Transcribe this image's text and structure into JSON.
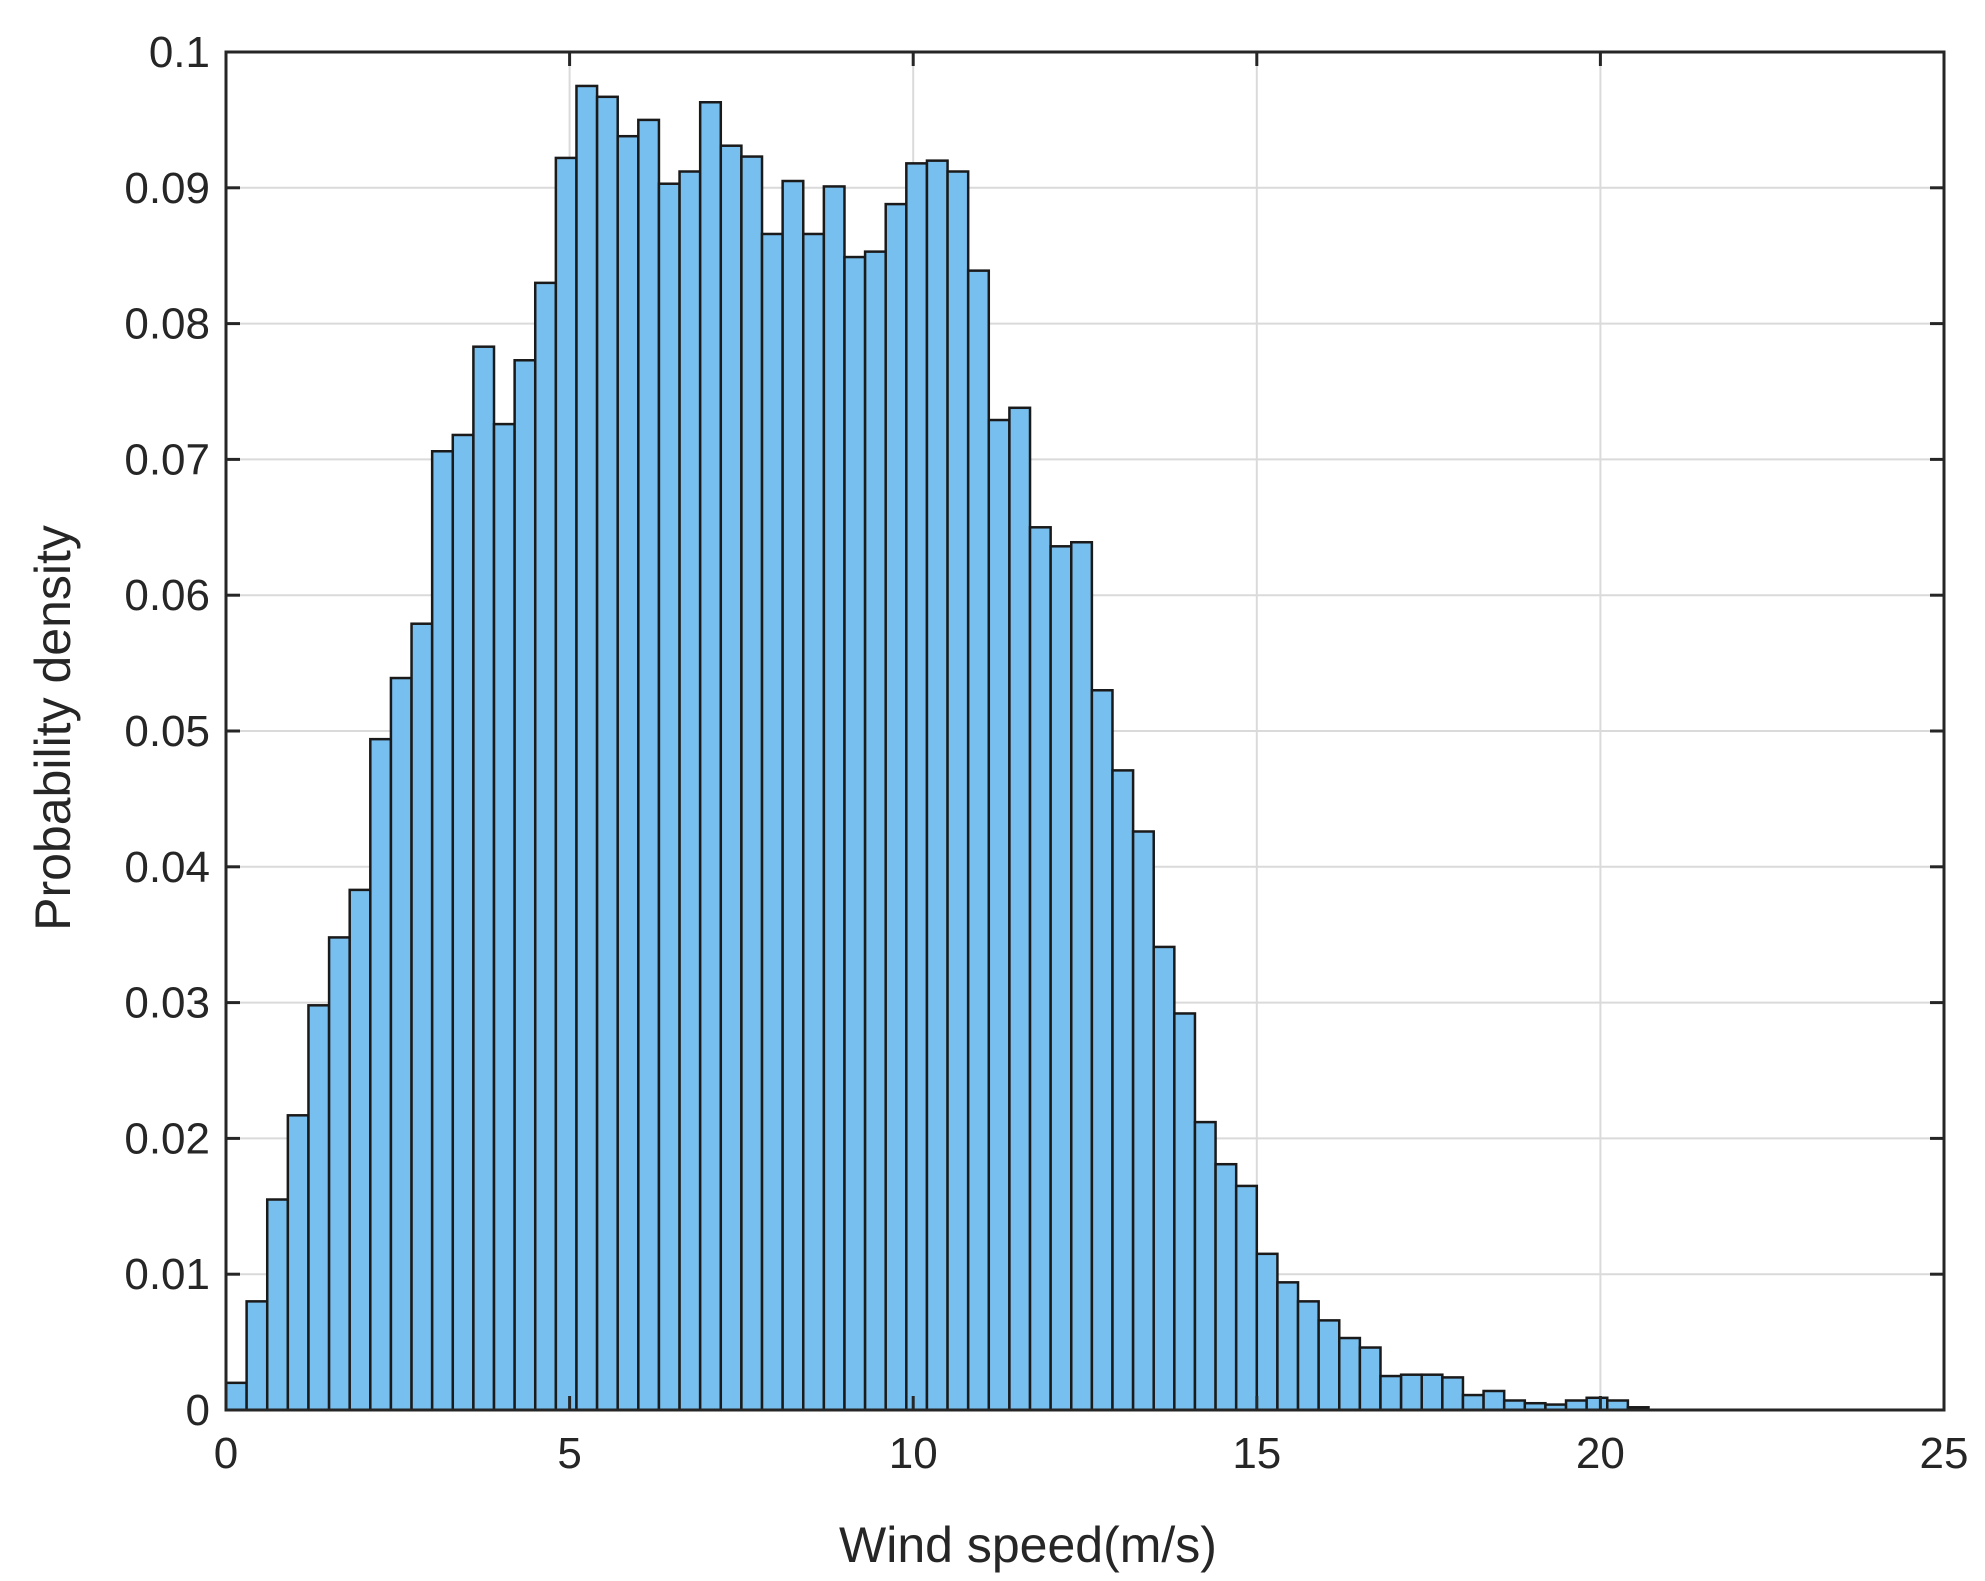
{
  "colors": {
    "bar_fill": "#77bfef",
    "bar_edge": "#1a1a1a",
    "axes": "#262626",
    "grid": "#dadada",
    "background": "#ffffff"
  },
  "chart_data": {
    "type": "bar",
    "subtype": "histogram",
    "title": "",
    "xlabel": "Wind speed(m/s)",
    "ylabel": "Probability density",
    "xlim": [
      0,
      25
    ],
    "ylim": [
      0,
      0.1
    ],
    "grid": true,
    "xticks": [
      0,
      5,
      10,
      15,
      20,
      25
    ],
    "xtick_labels": [
      "0",
      "5",
      "10",
      "15",
      "20",
      "25"
    ],
    "yticks": [
      0,
      0.01,
      0.02,
      0.03,
      0.04,
      0.05,
      0.06,
      0.07,
      0.08,
      0.09,
      0.1
    ],
    "ytick_labels": [
      "0",
      "0.01",
      "0.02",
      "0.03",
      "0.04",
      "0.05",
      "0.06",
      "0.07",
      "0.08",
      "0.09",
      "0.1"
    ],
    "bin_edges_start": 0,
    "bin_width": 0.3,
    "values": [
      0.002,
      0.008,
      0.0155,
      0.0217,
      0.0298,
      0.0348,
      0.0383,
      0.0494,
      0.0539,
      0.0579,
      0.0706,
      0.0718,
      0.0783,
      0.0726,
      0.0773,
      0.083,
      0.0922,
      0.0975,
      0.0967,
      0.0938,
      0.095,
      0.0903,
      0.0912,
      0.0963,
      0.0931,
      0.0923,
      0.0866,
      0.0905,
      0.0866,
      0.0901,
      0.0849,
      0.0853,
      0.0888,
      0.0918,
      0.092,
      0.0912,
      0.0839,
      0.0729,
      0.0738,
      0.065,
      0.0636,
      0.0639,
      0.053,
      0.0471,
      0.0426,
      0.0341,
      0.0292,
      0.0212,
      0.0181,
      0.0165,
      0.0115,
      0.0094,
      0.008,
      0.0066,
      0.0053,
      0.0046,
      0.0025,
      0.0026,
      0.0026,
      0.0024,
      0.0011,
      0.0014,
      0.0007,
      0.0005,
      0.0004,
      0.0007,
      0.0009,
      0.0007,
      0.0002
    ]
  }
}
